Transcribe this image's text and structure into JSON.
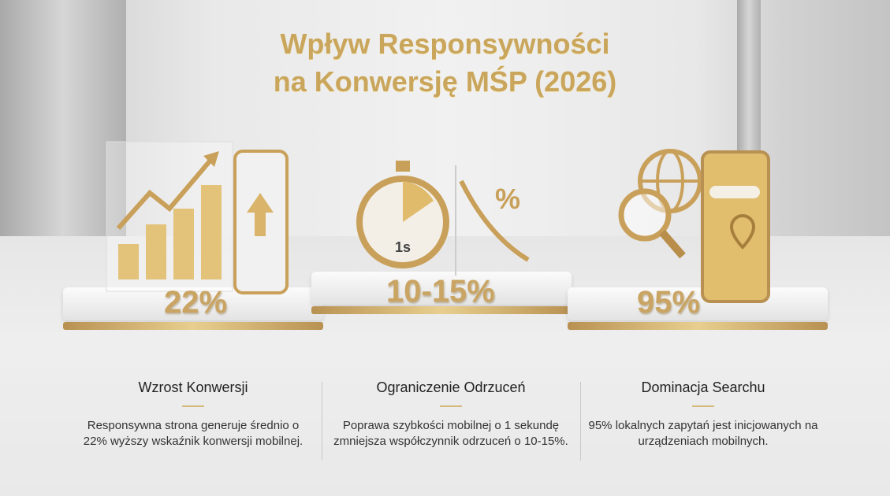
{
  "title": [
    "Wpływ Responsywności",
    "na Konwersję MŚP (2026)"
  ],
  "accent_color": "#c9a65c",
  "cards": [
    {
      "stat": "22%",
      "heading": "Wzrost Konwersji",
      "text": "Responsywna strona generuje średnio o 22% wyższy wskaźnik konwersji mobilnej.",
      "icon": "bar-chart-phone-icon"
    },
    {
      "stat": "10-15%",
      "heading": "Ograniczenie Odrzuceń",
      "text": "Poprawa szybkości mobilnej o 1 sekundę zmniejsza współczynnik odrzuceń o 10-15%.",
      "icon": "stopwatch-icon",
      "icon_label": "1s",
      "icon_symbol": "%"
    },
    {
      "stat": "95%",
      "heading": "Dominacja Searchu",
      "text": "95% lokalnych zapytań jest inicjowanych na urządzeniach mobilnych.",
      "icon": "search-globe-phone-icon"
    }
  ]
}
